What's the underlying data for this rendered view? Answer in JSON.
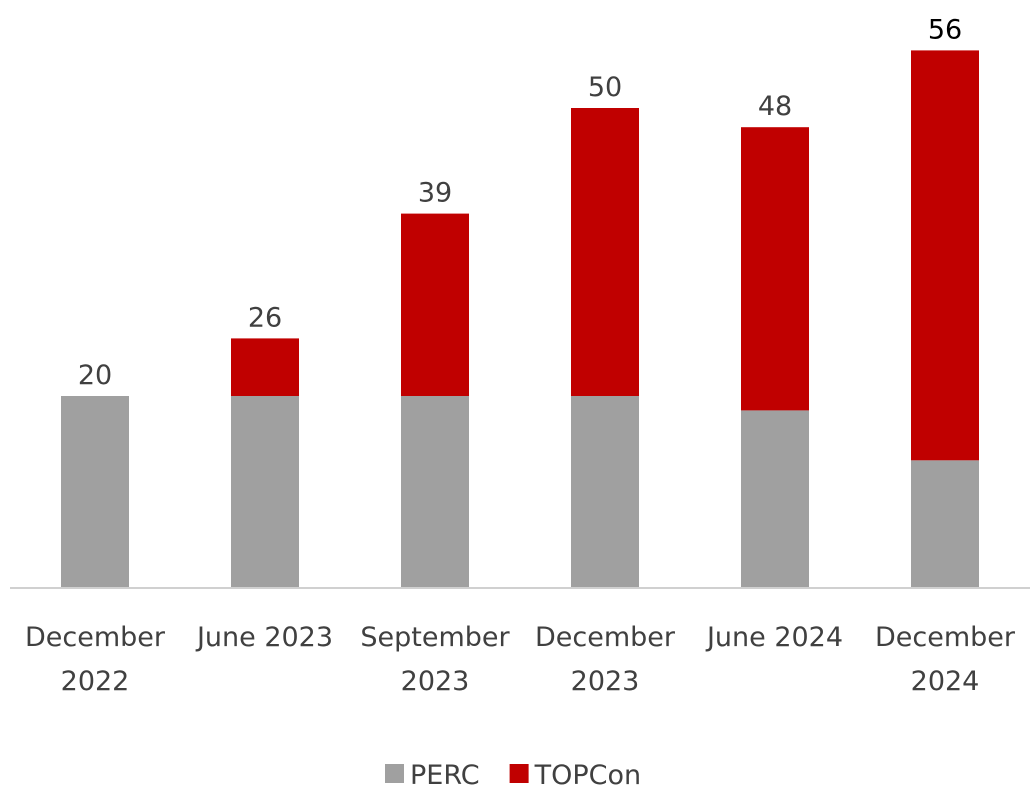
{
  "chart_data": {
    "type": "stacked_bar",
    "categories": [
      "December 2022",
      "June 2023",
      "September 2023",
      "December 2023",
      "June 2024",
      "December 2024"
    ],
    "series": [
      {
        "name": "PERC",
        "color": "#a0a0a0",
        "values": [
          20,
          20,
          20,
          20,
          18.5,
          13.3
        ]
      },
      {
        "name": "TOPCon",
        "color": "#c00000",
        "values": [
          0,
          6,
          19,
          30,
          29.5,
          42.7
        ]
      }
    ],
    "totals": [
      20,
      26,
      39,
      50,
      48,
      56
    ],
    "ylim": [
      0,
      60
    ],
    "legend": "bottom"
  }
}
